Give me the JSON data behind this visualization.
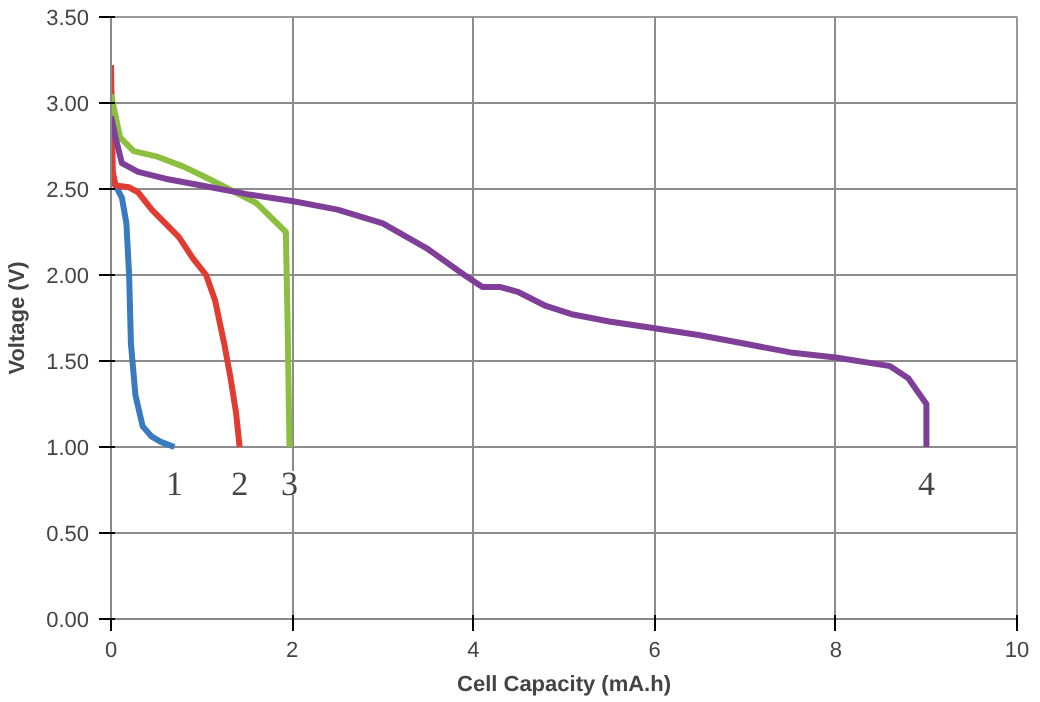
{
  "chart_data": {
    "type": "line",
    "xlabel": "Cell Capacity (mA.h)",
    "ylabel": "Voltage (V)",
    "xlim": [
      0,
      10
    ],
    "ylim": [
      0,
      3.5
    ],
    "xticks": [
      0,
      2,
      4,
      6,
      8,
      10
    ],
    "yticks": [
      {
        "value": 0,
        "label": "0.00"
      },
      {
        "value": 0.5,
        "label": "0.50"
      },
      {
        "value": 1,
        "label": "1.00"
      },
      {
        "value": 1.5,
        "label": "1.50"
      },
      {
        "value": 2,
        "label": "2.00"
      },
      {
        "value": 2.5,
        "label": "2.50"
      },
      {
        "value": 3,
        "label": "3.00"
      },
      {
        "value": 3.5,
        "label": "3.50"
      }
    ],
    "grid": true,
    "series": [
      {
        "name": "1",
        "color": "#3a7abf",
        "x": [
          0,
          0.05,
          0.12,
          0.17,
          0.2,
          0.22,
          0.27,
          0.35,
          0.45,
          0.55,
          0.7
        ],
        "values": [
          2.55,
          2.52,
          2.45,
          2.3,
          2.0,
          1.6,
          1.3,
          1.12,
          1.06,
          1.03,
          1.0
        ]
      },
      {
        "name": "2",
        "color": "#e03c31",
        "x": [
          0,
          0.02,
          0.05,
          0.2,
          0.3,
          0.45,
          0.6,
          0.75,
          0.9,
          1.05,
          1.15,
          1.25,
          1.32,
          1.38,
          1.42
        ],
        "values": [
          3.22,
          2.6,
          2.52,
          2.51,
          2.48,
          2.38,
          2.3,
          2.22,
          2.1,
          2.0,
          1.85,
          1.6,
          1.4,
          1.2,
          1.0
        ]
      },
      {
        "name": "3",
        "color": "#8cbf3f",
        "x": [
          0,
          0.1,
          0.25,
          0.5,
          0.8,
          1.0,
          1.3,
          1.6,
          1.93,
          1.95,
          1.97
        ],
        "values": [
          3.05,
          2.8,
          2.72,
          2.69,
          2.63,
          2.58,
          2.5,
          2.42,
          2.25,
          1.7,
          1.0
        ]
      },
      {
        "name": "4",
        "color": "#7f3f98",
        "x": [
          0,
          0.05,
          0.12,
          0.3,
          0.6,
          1,
          1.5,
          2,
          2.5,
          3,
          3.5,
          3.9,
          4.1,
          4.3,
          4.5,
          4.8,
          5.1,
          5.5,
          6,
          6.5,
          7,
          7.5,
          8,
          8.6,
          8.8,
          9.0,
          9.0
        ],
        "values": [
          2.92,
          2.8,
          2.65,
          2.6,
          2.56,
          2.52,
          2.47,
          2.43,
          2.38,
          2.3,
          2.15,
          2.0,
          1.93,
          1.93,
          1.9,
          1.82,
          1.77,
          1.73,
          1.69,
          1.65,
          1.6,
          1.55,
          1.52,
          1.47,
          1.4,
          1.25,
          1.0
        ]
      }
    ]
  }
}
